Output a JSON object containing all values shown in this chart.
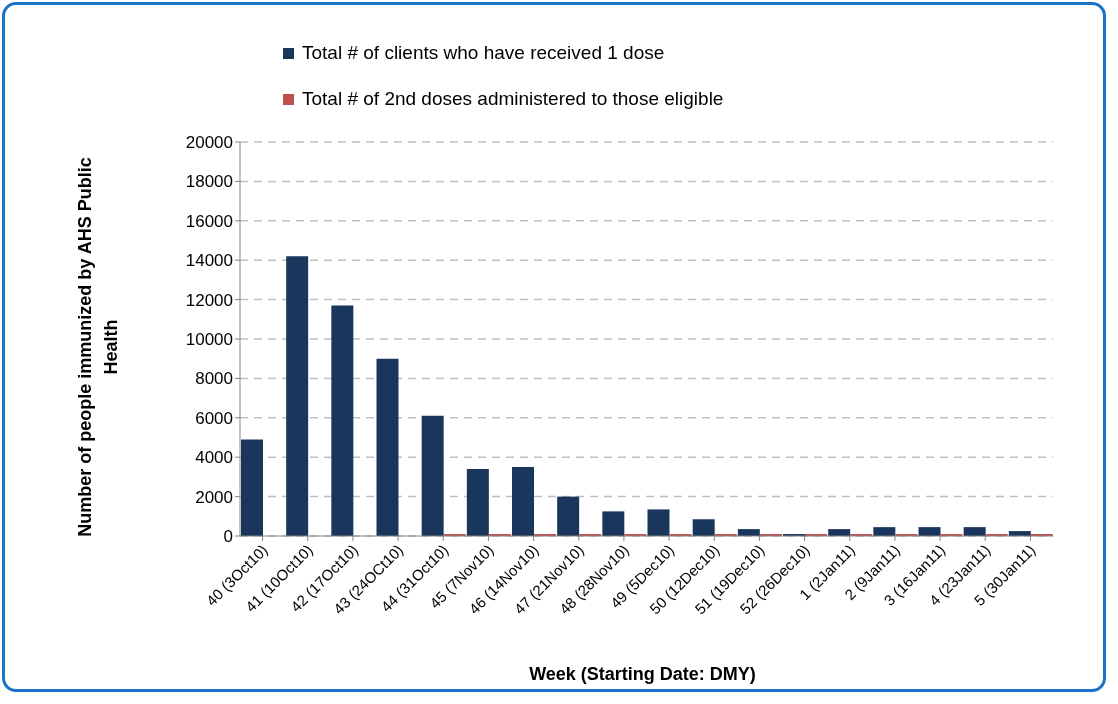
{
  "chart_data": {
    "type": "bar",
    "xlabel": "Week (Starting Date: DMY)",
    "ylabel": "Number of people immunized by AHS Public Health",
    "categories": [
      "40 (3Oct10)",
      "41 (10Oct10)",
      "42 (17Oct10)",
      "43 (24OCt10)",
      "44 (31Oct10)",
      "45 (7Nov10)",
      "46 (14Nov10)",
      "47 (21Nov10)",
      "48 (28Nov10)",
      "49 (5Dec10)",
      "50 (12Dec10)",
      "51 (19Dec10)",
      "52 (26Dec10)",
      "1 (2Jan11)",
      "2 (9Jan11)",
      "3 (16Jan11)",
      "4 (23Jan11)",
      "5 (30Jan11)"
    ],
    "series": [
      {
        "name": "Total # of clients who have received 1 dose",
        "color": "#1b365d",
        "values": [
          4900,
          14200,
          11700,
          9000,
          6100,
          3400,
          3500,
          2000,
          1250,
          1350,
          850,
          350,
          100,
          350,
          450,
          450,
          450,
          250
        ]
      },
      {
        "name": "Total # of 2nd doses administered to those eligible",
        "color": "#c0504d",
        "values": [
          0,
          0,
          0,
          0,
          100,
          100,
          100,
          100,
          100,
          100,
          100,
          100,
          100,
          100,
          100,
          100,
          100,
          100
        ]
      }
    ],
    "ylim": [
      0,
      20000
    ],
    "yticks": [
      0,
      2000,
      4000,
      6000,
      8000,
      10000,
      12000,
      14000,
      16000,
      18000,
      20000
    ],
    "grid": "y",
    "legend": "top"
  }
}
